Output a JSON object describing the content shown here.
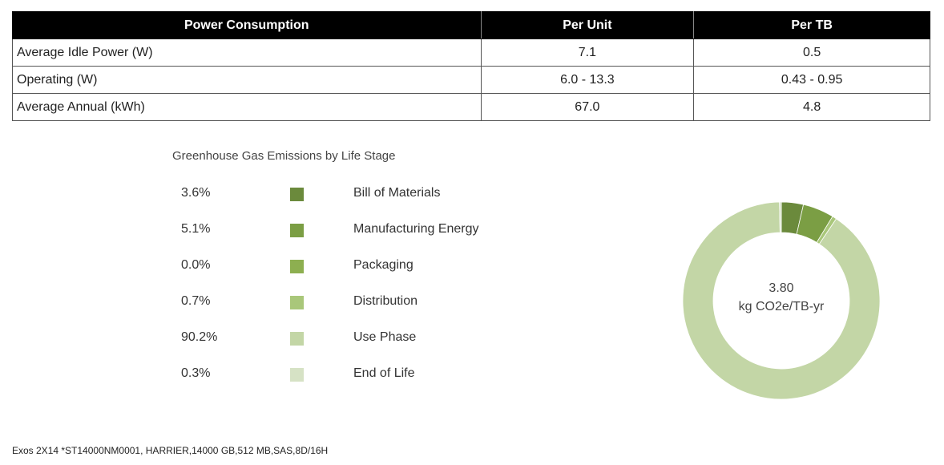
{
  "table": {
    "headers": [
      "Power Consumption",
      "Per Unit",
      "Per TB"
    ],
    "rows": [
      [
        "Average Idle Power (W)",
        "7.1",
        "0.5"
      ],
      [
        "Operating (W)",
        "6.0 - 13.3",
        "0.43 - 0.95"
      ],
      [
        "Average Annual (kWh)",
        "67.0",
        "4.8"
      ]
    ]
  },
  "chart_data": {
    "type": "pie",
    "title": "Greenhouse Gas Emissions by Life Stage",
    "center_value": "3.80",
    "center_unit": "kg CO2e/TB-yr",
    "legend_position": "left",
    "categories": [
      "Bill of Materials",
      "Manufacturing Energy",
      "Packaging",
      "Distribution",
      "Use Phase",
      "End of Life"
    ],
    "values": [
      3.6,
      5.1,
      0.0,
      0.7,
      90.2,
      0.3
    ],
    "labels": [
      "3.6%",
      "5.1%",
      "0.0%",
      "0.7%",
      "90.2%",
      "0.3%"
    ],
    "colors": [
      "#6b8a3c",
      "#7b9e44",
      "#8daf50",
      "#a9c77a",
      "#c3d6a6",
      "#d6e2c5"
    ]
  },
  "footer": "Exos 2X14 *ST14000NM0001, HARRIER,14000 GB,512 MB,SAS,8D/16H"
}
